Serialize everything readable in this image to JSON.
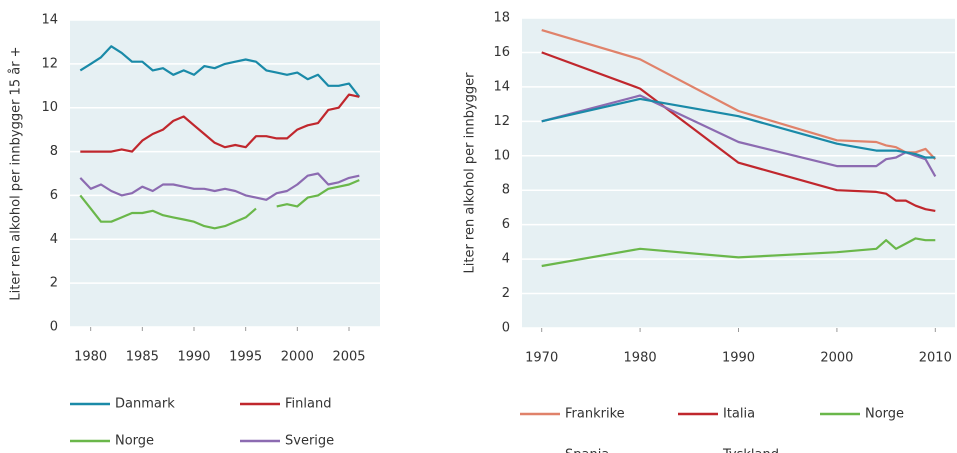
{
  "chart_data": [
    {
      "type": "line",
      "y_label": "Liter ren alkohol per innbygger 15 år +",
      "x": [
        1979,
        1980,
        1981,
        1982,
        1983,
        1984,
        1985,
        1986,
        1987,
        1988,
        1989,
        1990,
        1991,
        1992,
        1993,
        1994,
        1995,
        1996,
        1997,
        1998,
        1999,
        2000,
        2001,
        2002,
        2003,
        2004,
        2005,
        2006
      ],
      "series": [
        {
          "name": "Danmark",
          "color": "#1a8aa8",
          "values": [
            11.7,
            12.0,
            12.3,
            12.8,
            12.5,
            12.1,
            12.1,
            11.7,
            11.8,
            11.5,
            11.7,
            11.5,
            11.9,
            11.8,
            12.0,
            12.1,
            12.2,
            12.1,
            11.7,
            11.6,
            11.5,
            11.6,
            11.3,
            11.5,
            11.0,
            11.0,
            11.1,
            10.5
          ]
        },
        {
          "name": "Finland",
          "color": "#c0272d",
          "values": [
            8.0,
            8.0,
            8.0,
            8.0,
            8.1,
            8.0,
            8.5,
            8.8,
            9.0,
            9.4,
            9.6,
            9.2,
            8.8,
            8.4,
            8.2,
            8.3,
            8.2,
            8.7,
            8.7,
            8.6,
            8.6,
            9.0,
            9.2,
            9.3,
            9.9,
            10.0,
            10.6,
            10.5
          ]
        },
        {
          "name": "Norge",
          "color": "#6ab74a",
          "values": [
            6.0,
            5.4,
            4.8,
            4.8,
            5.0,
            5.2,
            5.2,
            5.3,
            5.1,
            5.0,
            4.9,
            4.8,
            4.6,
            4.5,
            4.6,
            4.8,
            5.0,
            5.4,
            null,
            5.5,
            5.6,
            5.5,
            5.9,
            6.0,
            6.3,
            6.4,
            6.5,
            6.7
          ]
        },
        {
          "name": "Sverige",
          "color": "#8c6bb1",
          "values": [
            6.8,
            6.3,
            6.5,
            6.2,
            6.0,
            6.1,
            6.4,
            6.2,
            6.5,
            6.5,
            6.4,
            6.3,
            6.3,
            6.2,
            6.3,
            6.2,
            6.0,
            5.9,
            5.8,
            6.1,
            6.2,
            6.5,
            6.9,
            7.0,
            6.5,
            6.6,
            6.8,
            6.9
          ]
        }
      ],
      "xlim": [
        1978,
        2008
      ],
      "xticks": [
        1980,
        1985,
        1990,
        1995,
        2000,
        2005
      ],
      "ylim": [
        0,
        14
      ],
      "yticks": [
        0,
        2,
        4,
        6,
        8,
        10,
        12,
        14
      ],
      "grid": true
    },
    {
      "type": "line",
      "y_label": "Liter ren alkohol per innbygger",
      "x": [
        1970,
        1980,
        1990,
        2000,
        2004,
        2005,
        2006,
        2007,
        2008,
        2009,
        2010
      ],
      "series": [
        {
          "name": "Frankrike",
          "color": "#e0826a",
          "values": [
            17.3,
            15.6,
            12.6,
            10.9,
            10.8,
            10.6,
            10.5,
            10.2,
            10.2,
            10.4,
            9.8
          ]
        },
        {
          "name": "Italia",
          "color": "#c0272d",
          "values": [
            16.0,
            13.9,
            9.6,
            8.0,
            7.9,
            7.8,
            7.4,
            7.4,
            7.1,
            6.9,
            6.8
          ]
        },
        {
          "name": "Norge",
          "color": "#6ab74a",
          "values": [
            3.6,
            4.6,
            4.1,
            4.4,
            4.6,
            5.1,
            4.6,
            4.9,
            5.2,
            5.1,
            5.1
          ]
        },
        {
          "name": "Spania",
          "color": "#8c6bb1",
          "values": [
            12.0,
            13.5,
            10.8,
            9.4,
            9.4,
            9.8,
            9.9,
            10.2,
            10.0,
            9.8,
            8.8
          ]
        },
        {
          "name": "Tyskland",
          "color": "#1a8aa8",
          "values": [
            12.0,
            13.3,
            12.3,
            10.7,
            10.3,
            10.3,
            10.3,
            10.2,
            10.1,
            9.9,
            9.9
          ]
        }
      ],
      "xlim": [
        1968,
        2012
      ],
      "xticks": [
        1970,
        1980,
        1990,
        2000,
        2010
      ],
      "ylim": [
        0,
        18
      ],
      "yticks": [
        0,
        2,
        4,
        6,
        8,
        10,
        12,
        14,
        16,
        18
      ],
      "grid": true
    }
  ]
}
